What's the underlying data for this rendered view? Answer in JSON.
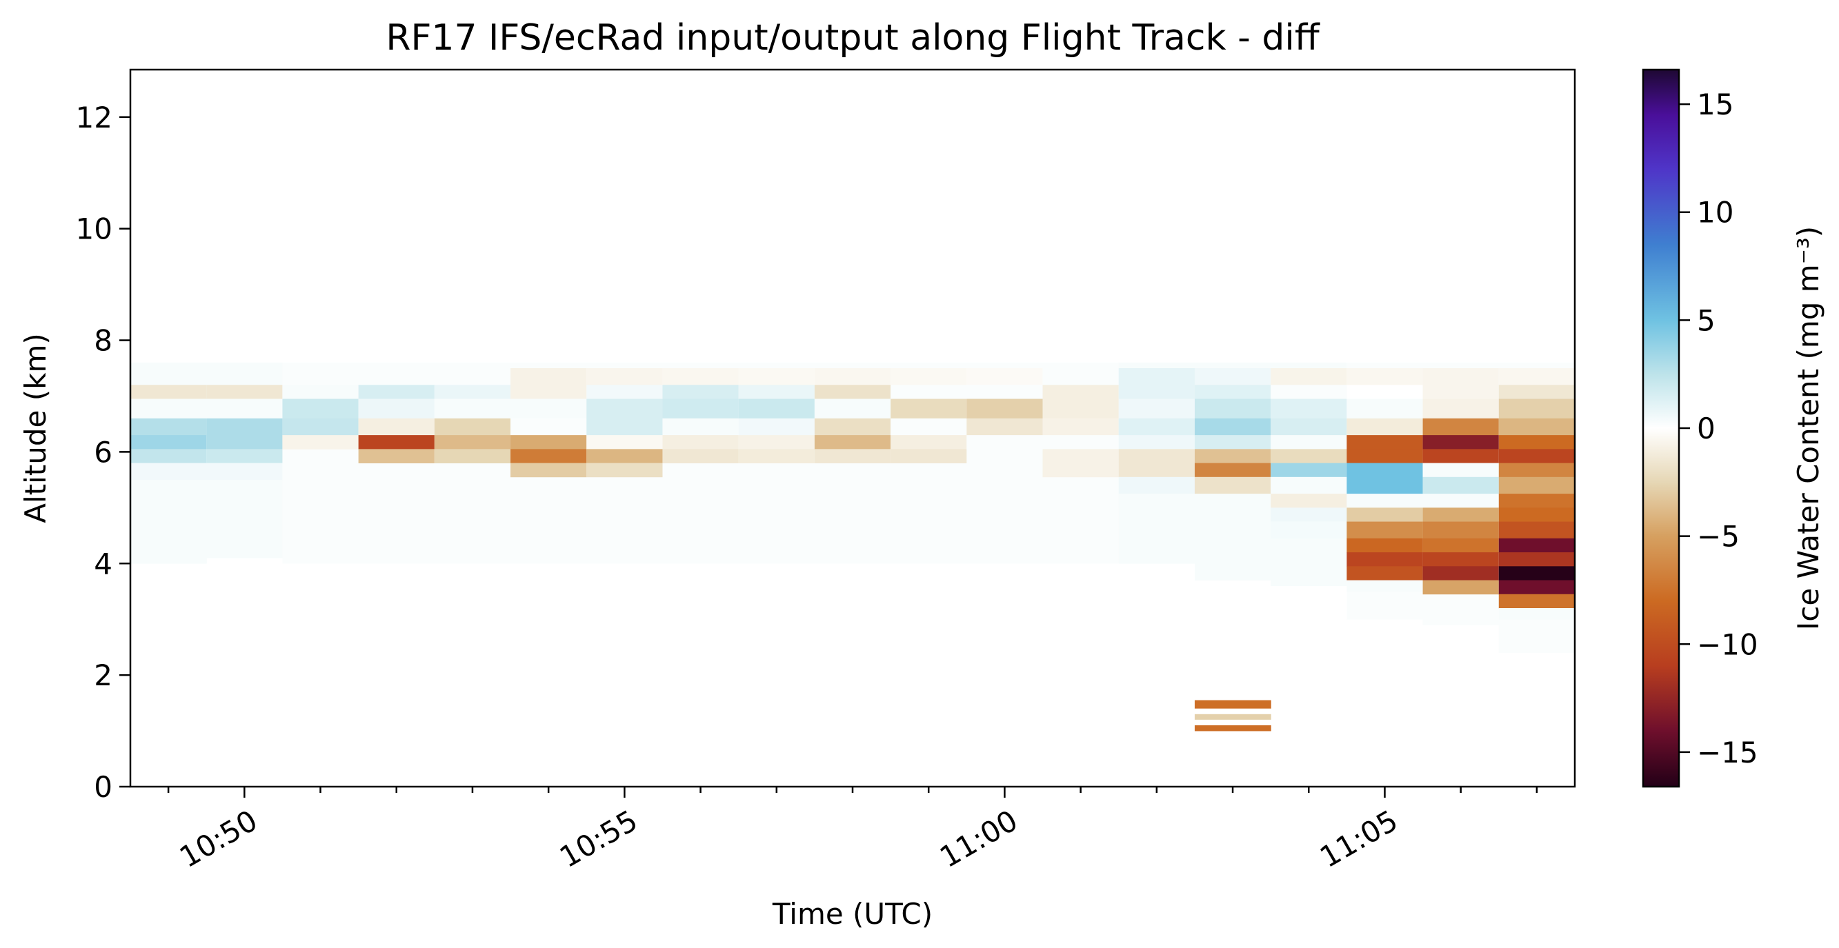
{
  "chart_data": {
    "type": "heatmap",
    "title": "RF17 IFS/ecRad input/output along Flight Track - diff",
    "xlabel": "Time (UTC)",
    "ylabel": "Altitude (km)",
    "colorbar_label": "Ice Water Content (mg m⁻³)",
    "x_ticks": [
      "10:50",
      "10:55",
      "11:00",
      "11:05"
    ],
    "x_tick_minutes": [
      50,
      55,
      60,
      65
    ],
    "y_ticks": [
      "0",
      "2",
      "4",
      "6",
      "8",
      "10",
      "12"
    ],
    "y_tick_values": [
      0,
      2,
      4,
      6,
      8,
      10,
      12
    ],
    "colorbar_ticks": [
      "−15",
      "−10",
      "−5",
      "0",
      "5",
      "10",
      "15"
    ],
    "colorbar_tick_values": [
      -15,
      -10,
      -5,
      0,
      5,
      10,
      15
    ],
    "xlim_minutes": [
      48.5,
      67.5
    ],
    "ylim": [
      0,
      12.85
    ],
    "clim": [
      -16.6,
      16.6
    ],
    "column_edges_minutes": [
      48.5,
      49.5,
      50.5,
      51.5,
      52.5,
      53.5,
      54.5,
      55.5,
      56.5,
      57.5,
      58.5,
      59.5,
      60.5,
      61.5,
      62.5,
      63.5,
      64.5,
      65.5,
      66.5,
      67.5
    ],
    "colormap": [
      {
        "v": -16.6,
        "color": "#230017"
      },
      {
        "v": -14.0,
        "color": "#6f0f2c"
      },
      {
        "v": -11.0,
        "color": "#b83e1f"
      },
      {
        "v": -8.0,
        "color": "#cc6a22"
      },
      {
        "v": -5.0,
        "color": "#d6a060"
      },
      {
        "v": -2.5,
        "color": "#e6d7b5"
      },
      {
        "v": 0.0,
        "color": "#ffffff"
      },
      {
        "v": 2.5,
        "color": "#bde3ea"
      },
      {
        "v": 5.0,
        "color": "#6fc2e2"
      },
      {
        "v": 8.5,
        "color": "#3f7fd0"
      },
      {
        "v": 12.0,
        "color": "#4f35c8"
      },
      {
        "v": 14.5,
        "color": "#4a0f9a"
      },
      {
        "v": 16.6,
        "color": "#1e0833"
      }
    ],
    "cells": [
      [
        0,
        4.0,
        7.6,
        0.3
      ],
      [
        0,
        6.95,
        7.2,
        -1.5
      ],
      [
        0,
        6.6,
        6.95,
        0.3
      ],
      [
        0,
        6.3,
        6.6,
        2.8
      ],
      [
        0,
        6.05,
        6.3,
        3.5
      ],
      [
        0,
        5.8,
        6.05,
        2.3
      ],
      [
        0,
        5.5,
        5.8,
        0.5
      ],
      [
        1,
        4.1,
        7.6,
        0.3
      ],
      [
        1,
        6.95,
        7.2,
        -1.5
      ],
      [
        1,
        6.6,
        6.95,
        0.3
      ],
      [
        1,
        6.3,
        6.6,
        3.0
      ],
      [
        1,
        6.05,
        6.3,
        3.0
      ],
      [
        1,
        5.8,
        6.05,
        2.0
      ],
      [
        1,
        5.5,
        5.8,
        0.5
      ],
      [
        2,
        4.0,
        7.6,
        0.2
      ],
      [
        2,
        6.95,
        7.2,
        0.3
      ],
      [
        2,
        6.6,
        6.95,
        2.0
      ],
      [
        2,
        6.3,
        6.6,
        2.2
      ],
      [
        2,
        6.05,
        6.3,
        -0.7
      ],
      [
        3,
        4.0,
        7.6,
        0.2
      ],
      [
        3,
        6.95,
        7.2,
        1.5
      ],
      [
        3,
        6.6,
        6.95,
        0.7
      ],
      [
        3,
        6.3,
        6.6,
        -1.0
      ],
      [
        3,
        6.05,
        6.3,
        -10.5
      ],
      [
        3,
        5.8,
        6.05,
        -3.5
      ],
      [
        4,
        4.0,
        7.6,
        0.2
      ],
      [
        4,
        6.95,
        7.2,
        0.8
      ],
      [
        4,
        6.6,
        6.95,
        0.3
      ],
      [
        4,
        6.3,
        6.6,
        -2.5
      ],
      [
        4,
        6.05,
        6.3,
        -3.8
      ],
      [
        4,
        5.8,
        6.05,
        -2.5
      ],
      [
        5,
        4.0,
        7.6,
        0.2
      ],
      [
        5,
        7.2,
        7.5,
        -0.8
      ],
      [
        5,
        6.95,
        7.2,
        -0.8
      ],
      [
        5,
        6.6,
        6.95,
        0.3
      ],
      [
        5,
        6.3,
        6.6,
        0.2
      ],
      [
        5,
        6.05,
        6.3,
        -4.5
      ],
      [
        5,
        5.8,
        6.05,
        -7.0
      ],
      [
        5,
        5.55,
        5.8,
        -3.0
      ],
      [
        6,
        4.0,
        7.6,
        0.2
      ],
      [
        6,
        7.2,
        7.5,
        -0.6
      ],
      [
        6,
        6.95,
        7.2,
        0.5
      ],
      [
        6,
        6.6,
        6.95,
        1.5
      ],
      [
        6,
        6.3,
        6.6,
        1.5
      ],
      [
        6,
        6.05,
        6.3,
        -0.4
      ],
      [
        6,
        5.8,
        6.05,
        -4.0
      ],
      [
        6,
        5.55,
        5.8,
        -2.0
      ],
      [
        7,
        4.0,
        7.6,
        0.2
      ],
      [
        7,
        7.2,
        7.5,
        -0.5
      ],
      [
        7,
        6.95,
        7.2,
        1.5
      ],
      [
        7,
        6.6,
        6.95,
        1.8
      ],
      [
        7,
        6.3,
        6.6,
        0.3
      ],
      [
        7,
        6.05,
        6.3,
        -1.0
      ],
      [
        7,
        5.8,
        6.05,
        -1.5
      ],
      [
        8,
        4.0,
        7.6,
        0.2
      ],
      [
        8,
        7.2,
        7.5,
        -0.4
      ],
      [
        8,
        6.95,
        7.2,
        0.8
      ],
      [
        8,
        6.6,
        6.95,
        2.0
      ],
      [
        8,
        6.3,
        6.6,
        0.5
      ],
      [
        8,
        6.05,
        6.3,
        -0.8
      ],
      [
        8,
        5.8,
        6.05,
        -1.2
      ],
      [
        9,
        4.0,
        7.6,
        0.2
      ],
      [
        9,
        7.2,
        7.5,
        -0.5
      ],
      [
        9,
        6.95,
        7.2,
        -1.8
      ],
      [
        9,
        6.6,
        6.95,
        0.3
      ],
      [
        9,
        6.3,
        6.6,
        -2.0
      ],
      [
        9,
        6.05,
        6.3,
        -3.8
      ],
      [
        9,
        5.8,
        6.05,
        -1.5
      ],
      [
        10,
        4.0,
        7.6,
        0.2
      ],
      [
        10,
        7.2,
        7.5,
        -0.4
      ],
      [
        10,
        6.95,
        7.2,
        0.2
      ],
      [
        10,
        6.6,
        6.95,
        -2.2
      ],
      [
        10,
        6.3,
        6.6,
        0.2
      ],
      [
        10,
        6.05,
        6.3,
        -1.0
      ],
      [
        10,
        5.8,
        6.05,
        -1.5
      ],
      [
        11,
        4.0,
        7.6,
        0.2
      ],
      [
        11,
        7.2,
        7.5,
        -0.3
      ],
      [
        11,
        6.95,
        7.2,
        0.2
      ],
      [
        11,
        6.6,
        6.95,
        -2.8
      ],
      [
        11,
        6.3,
        6.6,
        -1.5
      ],
      [
        11,
        6.05,
        6.3,
        0.2
      ],
      [
        12,
        4.0,
        7.6,
        0.2
      ],
      [
        12,
        6.95,
        7.2,
        -1.0
      ],
      [
        12,
        6.6,
        6.95,
        -1.0
      ],
      [
        12,
        6.3,
        6.6,
        -0.8
      ],
      [
        12,
        6.05,
        6.3,
        0.2
      ],
      [
        12,
        5.8,
        6.05,
        -0.8
      ],
      [
        12,
        5.55,
        5.8,
        -0.8
      ],
      [
        13,
        4.0,
        7.6,
        0.3
      ],
      [
        13,
        7.2,
        7.5,
        1.0
      ],
      [
        13,
        6.95,
        7.2,
        1.0
      ],
      [
        13,
        6.6,
        6.95,
        0.6
      ],
      [
        13,
        6.3,
        6.6,
        1.2
      ],
      [
        13,
        6.05,
        6.3,
        0.6
      ],
      [
        13,
        5.8,
        6.05,
        -1.5
      ],
      [
        13,
        5.55,
        5.8,
        -1.5
      ],
      [
        13,
        5.25,
        5.55,
        0.6
      ],
      [
        13,
        5.0,
        5.25,
        0.3
      ],
      [
        14,
        3.7,
        7.6,
        0.3
      ],
      [
        14,
        7.2,
        7.5,
        0.6
      ],
      [
        14,
        6.95,
        7.2,
        1.2
      ],
      [
        14,
        6.6,
        6.95,
        2.0
      ],
      [
        14,
        6.3,
        6.6,
        3.2
      ],
      [
        14,
        6.05,
        6.3,
        1.5
      ],
      [
        14,
        5.8,
        6.05,
        -3.5
      ],
      [
        14,
        5.55,
        5.8,
        -6.5
      ],
      [
        14,
        5.25,
        5.55,
        -1.8
      ],
      [
        14,
        5.0,
        5.25,
        0.3
      ],
      [
        14,
        4.75,
        5.0,
        0.3
      ],
      [
        14,
        1.4,
        1.55,
        -7.8
      ],
      [
        14,
        1.3,
        1.4,
        0.0
      ],
      [
        14,
        1.2,
        1.3,
        -2.8
      ],
      [
        14,
        1.1,
        1.2,
        0.0
      ],
      [
        14,
        1.0,
        1.1,
        -7.8
      ],
      [
        15,
        3.6,
        7.6,
        0.3
      ],
      [
        15,
        7.2,
        7.5,
        -0.7
      ],
      [
        15,
        6.95,
        7.2,
        0.2
      ],
      [
        15,
        6.6,
        6.95,
        1.2
      ],
      [
        15,
        6.3,
        6.6,
        1.5
      ],
      [
        15,
        6.05,
        6.3,
        0.3
      ],
      [
        15,
        5.8,
        6.05,
        -2.2
      ],
      [
        15,
        5.55,
        5.8,
        3.5
      ],
      [
        15,
        5.25,
        5.55,
        0.3
      ],
      [
        15,
        5.0,
        5.25,
        -1.0
      ],
      [
        15,
        4.75,
        5.0,
        0.6
      ],
      [
        15,
        4.45,
        4.75,
        0.4
      ],
      [
        16,
        3.0,
        7.6,
        0.2
      ],
      [
        16,
        7.2,
        7.5,
        -0.5
      ],
      [
        16,
        6.95,
        7.2,
        0.0
      ],
      [
        16,
        6.6,
        6.95,
        0.3
      ],
      [
        16,
        6.3,
        6.6,
        -1.2
      ],
      [
        16,
        6.05,
        6.3,
        -9.0
      ],
      [
        16,
        5.8,
        6.05,
        -9.0
      ],
      [
        16,
        5.55,
        5.8,
        5.0
      ],
      [
        16,
        5.25,
        5.55,
        5.0
      ],
      [
        16,
        5.0,
        5.25,
        0.3
      ],
      [
        16,
        4.75,
        5.0,
        -3.0
      ],
      [
        16,
        4.45,
        4.75,
        -6.0
      ],
      [
        16,
        4.2,
        4.45,
        -8.2
      ],
      [
        16,
        3.95,
        4.2,
        -10.5
      ],
      [
        16,
        3.7,
        3.95,
        -9.5
      ],
      [
        16,
        3.5,
        3.7,
        0.3
      ],
      [
        17,
        2.9,
        7.6,
        0.2
      ],
      [
        17,
        7.2,
        7.5,
        -0.6
      ],
      [
        17,
        6.95,
        7.2,
        -0.6
      ],
      [
        17,
        6.6,
        6.95,
        -0.8
      ],
      [
        17,
        6.3,
        6.6,
        -6.5
      ],
      [
        17,
        6.05,
        6.3,
        -13.0
      ],
      [
        17,
        5.8,
        6.05,
        -10.5
      ],
      [
        17,
        5.55,
        5.8,
        0.3
      ],
      [
        17,
        5.25,
        5.55,
        2.0
      ],
      [
        17,
        5.0,
        5.25,
        0.3
      ],
      [
        17,
        4.75,
        5.0,
        -4.5
      ],
      [
        17,
        4.45,
        4.75,
        -6.5
      ],
      [
        17,
        4.2,
        4.45,
        -7.5
      ],
      [
        17,
        3.95,
        4.2,
        -10.5
      ],
      [
        17,
        3.7,
        3.95,
        -12.0
      ],
      [
        17,
        3.45,
        3.7,
        -4.8
      ],
      [
        18,
        2.4,
        7.6,
        0.2
      ],
      [
        18,
        7.2,
        7.5,
        -0.5
      ],
      [
        18,
        6.95,
        7.2,
        -1.5
      ],
      [
        18,
        6.6,
        6.95,
        -2.8
      ],
      [
        18,
        6.3,
        6.6,
        -4.0
      ],
      [
        18,
        6.05,
        6.3,
        -8.0
      ],
      [
        18,
        5.8,
        6.05,
        -10.5
      ],
      [
        18,
        5.55,
        5.8,
        -6.5
      ],
      [
        18,
        5.25,
        5.55,
        -4.5
      ],
      [
        18,
        5.0,
        5.25,
        -7.5
      ],
      [
        18,
        4.75,
        5.0,
        -8.0
      ],
      [
        18,
        4.45,
        4.75,
        -9.5
      ],
      [
        18,
        4.2,
        4.45,
        -14.0
      ],
      [
        18,
        3.95,
        4.2,
        -11.5
      ],
      [
        18,
        3.7,
        3.95,
        -16.5
      ],
      [
        18,
        3.45,
        3.7,
        -14.0
      ],
      [
        18,
        3.2,
        3.45,
        -7.5
      ],
      [
        18,
        3.0,
        3.2,
        0.3
      ]
    ]
  }
}
